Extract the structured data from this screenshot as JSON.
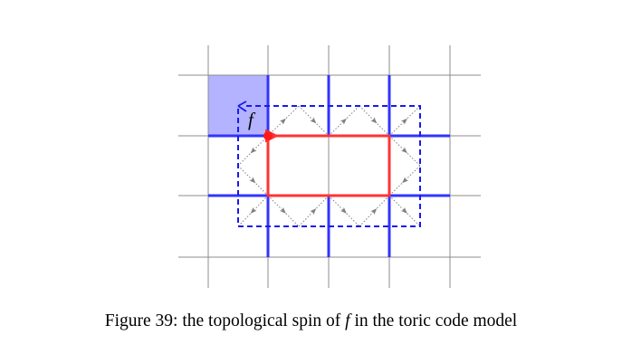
{
  "caption": {
    "prefix": "Figure 39: the topological spin of ",
    "symbol": "f",
    "suffix": " in the toric code model"
  },
  "diagram": {
    "label": "f",
    "colors": {
      "grid": "#8c8c8c",
      "blue": "#3333ff",
      "red": "#ff3333",
      "fill": "#b3b3ff",
      "arrow": "#808080"
    }
  }
}
